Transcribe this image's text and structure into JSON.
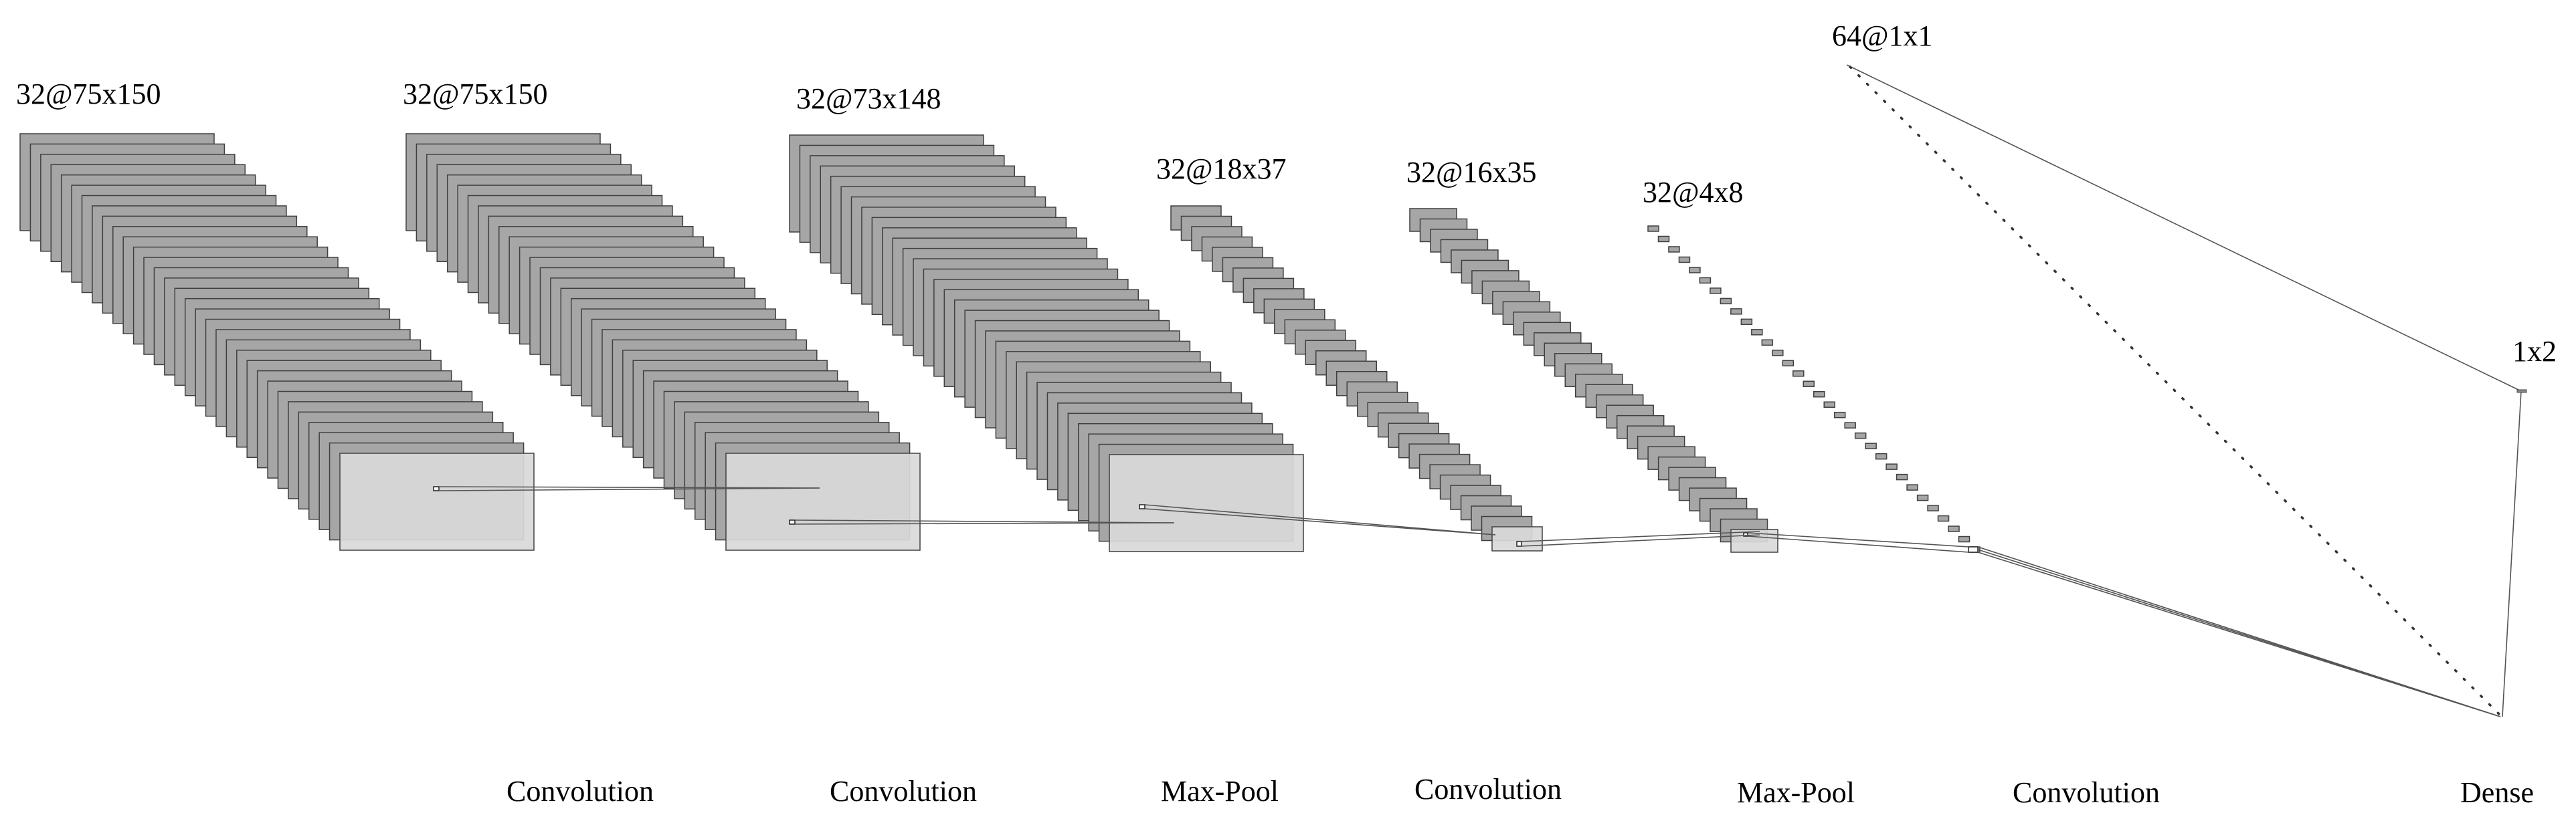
{
  "layers": [
    {
      "id": "conv1",
      "label": "32@75x150",
      "depth": 32
    },
    {
      "id": "conv2",
      "label": "32@75x150",
      "depth": 32
    },
    {
      "id": "conv3",
      "label": "32@73x148",
      "depth": 32
    },
    {
      "id": "pool1",
      "label": "32@18x37",
      "depth": 32
    },
    {
      "id": "conv4",
      "label": "32@16x35",
      "depth": 32
    },
    {
      "id": "pool2",
      "label": "32@4x8",
      "depth": 32
    },
    {
      "id": "conv5",
      "label": "64@1x1",
      "depth": 64
    },
    {
      "id": "dense",
      "label": "1x2",
      "depth": 1
    }
  ],
  "operations": [
    "Convolution",
    "Convolution",
    "Max-Pool",
    "Convolution",
    "Max-Pool",
    "Convolution",
    "Dense"
  ],
  "colors": {
    "map_fill": "#a6a6a6",
    "map_stroke": "#404040",
    "front_fill": "#d9d9d9",
    "inner_fill": "#c0c0c0",
    "link_stroke": "#555555"
  }
}
